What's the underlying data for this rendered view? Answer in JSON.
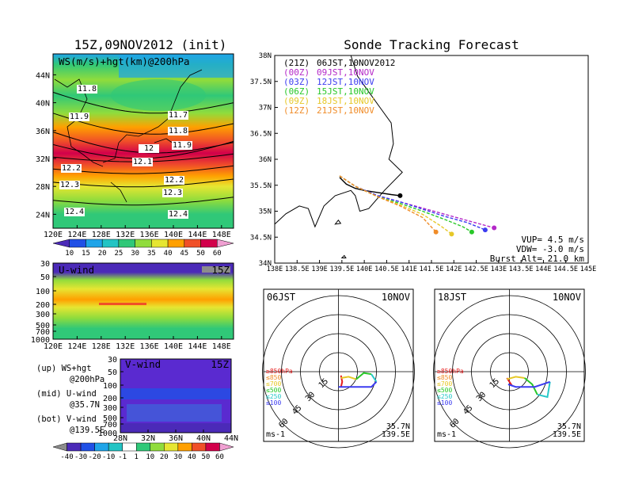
{
  "header": {
    "left_title": "15Z,09NOV2012 (init)",
    "right_title": "Sonde Tracking Forecast"
  },
  "ws_panel": {
    "label": "WS(m/s)+hgt(km)@200hPa",
    "lat_ticks": [
      "44N",
      "40N",
      "36N",
      "32N",
      "28N",
      "24N"
    ],
    "lon_ticks": [
      "120E",
      "124E",
      "128E",
      "132E",
      "136E",
      "140E",
      "144E",
      "148E"
    ],
    "contour_labels": [
      "11.8",
      "11.9",
      "11.7",
      "11.8",
      "11.9",
      "12",
      "12.1",
      "12.2",
      "12.2",
      "12.3",
      "12.3",
      "12.4",
      "12.4"
    ],
    "colorbar": {
      "ticks": [
        "10",
        "15",
        "20",
        "25",
        "30",
        "35",
        "40",
        "45",
        "50",
        "60"
      ],
      "colors": [
        "#4b2ab8",
        "#2050e6",
        "#1fa4e8",
        "#22c4c4",
        "#30c878",
        "#90dc3c",
        "#e6e632",
        "#ffa000",
        "#f05028",
        "#d2004b",
        "#f0a0d2"
      ]
    }
  },
  "u_panel": {
    "label": "U-wind",
    "time": "15Z",
    "levels": [
      "30",
      "50",
      "100",
      "200",
      "300",
      "500",
      "700",
      "1000"
    ],
    "lon_ticks": [
      "120E",
      "124E",
      "128E",
      "132E",
      "136E",
      "140E",
      "144E",
      "148E"
    ]
  },
  "v_panel": {
    "label": "V-wind",
    "time": "15Z",
    "levels": [
      "30",
      "50",
      "100",
      "200",
      "300",
      "500",
      "700",
      "1000"
    ],
    "lat_ticks": [
      "28N",
      "32N",
      "36N",
      "40N",
      "44N"
    ],
    "colorbar": {
      "ticks": [
        "-40",
        "-30",
        "-20",
        "-10",
        "-1",
        "1",
        "10",
        "20",
        "30",
        "40",
        "50",
        "60"
      ],
      "colors": [
        "#8c8c8c",
        "#4b2ab8",
        "#2050e6",
        "#1fa4e8",
        "#22c4c4",
        "#ffffff",
        "#30c878",
        "#90dc3c",
        "#e6e632",
        "#ffa000",
        "#f05028",
        "#d2004b",
        "#f0a0d2"
      ]
    }
  },
  "notes": {
    "up1": "(up) WS+hgt",
    "up2": "@200hPa",
    "mid1": "(mid) U-wind",
    "mid2": "@35.7N",
    "bot1": "(bot) V-wind",
    "bot2": "@139.5E"
  },
  "map_panel": {
    "lat_ticks": [
      "38N",
      "37.5N",
      "37N",
      "36.5N",
      "36N",
      "35.5N",
      "35N",
      "34.5N",
      "34N"
    ],
    "lon_ticks": [
      "138E",
      "138.5E",
      "139E",
      "139.5E",
      "140E",
      "140.5E",
      "141E",
      "141.5E",
      "142E",
      "142.5E",
      "143E",
      "143.5E",
      "144E",
      "144.5E",
      "145E"
    ],
    "legend": [
      {
        "code": "(21Z)",
        "time": "06JST,10NOV2012",
        "color": "#000000"
      },
      {
        "code": "(00Z)",
        "time": "09JST,10NOV",
        "color": "#b428c8"
      },
      {
        "code": "(03Z)",
        "time": "12JST,10NOV",
        "color": "#3c3cf0"
      },
      {
        "code": "(06Z)",
        "time": "15JST,10NOV",
        "color": "#28c828"
      },
      {
        "code": "(09Z)",
        "time": "18JST,10NOV",
        "color": "#e6c828"
      },
      {
        "code": "(12Z)",
        "time": "21JST,10NOV",
        "color": "#f08c28"
      }
    ],
    "params": {
      "vup": "VUP= 4.5 m/s",
      "vdw": "VDW= -3.0 m/s",
      "burst": "Burst Alt= 21.0 km"
    }
  },
  "hodo_left": {
    "title": "06JST",
    "date": "10NOV",
    "ring_labels": [
      "15",
      "30",
      "45",
      "60"
    ],
    "legend": [
      {
        "label": "≥850hPa",
        "color": "#e61e1e"
      },
      {
        "label": "≤850",
        "color": "#f08c28"
      },
      {
        "label": "≤700",
        "color": "#e6c828"
      },
      {
        "label": "≤500",
        "color": "#28c828"
      },
      {
        "label": "≤250",
        "color": "#28c8c8"
      },
      {
        "label": "≤100",
        "color": "#3c3cf0"
      }
    ],
    "unit": "ms-1",
    "lat": "35.7N",
    "lon": "139.5E"
  },
  "hodo_right": {
    "title": "18JST",
    "date": "10NOV",
    "ring_labels": [
      "15",
      "30",
      "45",
      "60"
    ],
    "legend": [
      {
        "label": "≥850hPa",
        "color": "#e61e1e"
      },
      {
        "label": "≤850",
        "color": "#f08c28"
      },
      {
        "label": "≤700",
        "color": "#e6c828"
      },
      {
        "label": "≤500",
        "color": "#28c828"
      },
      {
        "label": "≤250",
        "color": "#28c8c8"
      },
      {
        "label": "≤100",
        "color": "#3c3cf0"
      }
    ],
    "unit": "ms-1",
    "lat": "35.7N",
    "lon": "139.5E"
  },
  "chart_data": [
    {
      "type": "heatmap",
      "title": "15Z,09NOV2012 (init)",
      "label": "WS(m/s)+hgt(km)@200hPa",
      "xlim": [
        120,
        150
      ],
      "ylim": [
        22,
        47
      ],
      "x_ticks": [
        120,
        124,
        128,
        132,
        136,
        140,
        144,
        148
      ],
      "y_ticks": [
        24,
        28,
        32,
        36,
        40,
        44
      ],
      "jet_core_lat": 31.5,
      "height_contours_km": [
        11.7,
        11.8,
        11.9,
        12.0,
        12.1,
        12.2,
        12.3,
        12.4
      ],
      "colorbar_levels": [
        10,
        15,
        20,
        25,
        30,
        35,
        40,
        45,
        50,
        60
      ]
    },
    {
      "type": "heatmap",
      "label": "U-wind",
      "time": "15Z",
      "xlim": [
        120,
        150
      ],
      "y_levels_hPa": [
        30,
        50,
        100,
        200,
        300,
        500,
        700,
        1000
      ],
      "max_level_hPa": 200
    },
    {
      "type": "heatmap",
      "label": "V-wind",
      "time": "15Z",
      "xlim": [
        28,
        44
      ],
      "y_levels_hPa": [
        30,
        50,
        100,
        200,
        300,
        500,
        700,
        1000
      ],
      "colorbar_levels": [
        -40,
        -30,
        -20,
        -10,
        -1,
        1,
        10,
        20,
        30,
        40,
        50,
        60
      ]
    },
    {
      "type": "line",
      "title": "Sonde Tracking Forecast",
      "xlim": [
        138,
        145
      ],
      "ylim": [
        34,
        38
      ],
      "launch": {
        "lon": 139.5,
        "lat": 35.7
      },
      "series": [
        {
          "name": "(21Z) 06JST,10NOV2012",
          "x": [
            139.45,
            139.6,
            139.8,
            140.0,
            140.3,
            140.6,
            140.8
          ],
          "y": [
            35.65,
            35.52,
            35.44,
            35.4,
            35.36,
            35.32,
            35.3
          ]
        },
        {
          "name": "(00Z) 09JST,10NOV",
          "x": [
            139.45,
            139.8,
            140.3,
            140.8,
            141.3,
            141.8,
            142.3,
            142.9
          ],
          "y": [
            35.68,
            35.48,
            35.3,
            35.18,
            35.06,
            34.94,
            34.82,
            34.68
          ]
        },
        {
          "name": "(03Z) 12JST,10NOV",
          "x": [
            139.45,
            139.8,
            140.3,
            140.8,
            141.3,
            141.8,
            142.3,
            142.7
          ],
          "y": [
            35.68,
            35.48,
            35.3,
            35.18,
            35.04,
            34.9,
            34.78,
            34.64
          ]
        },
        {
          "name": "(06Z) 15JST,10NOV",
          "x": [
            139.45,
            139.8,
            140.3,
            140.8,
            141.3,
            141.8,
            142.2,
            142.4
          ],
          "y": [
            35.68,
            35.48,
            35.28,
            35.15,
            35.0,
            34.84,
            34.7,
            34.6
          ]
        },
        {
          "name": "(09Z) 18JST,10NOV",
          "x": [
            139.45,
            139.8,
            140.3,
            140.8,
            141.3,
            141.7,
            141.95
          ],
          "y": [
            35.68,
            35.48,
            35.28,
            35.12,
            34.94,
            34.72,
            34.56
          ]
        },
        {
          "name": "(12Z) 21JST,10NOV",
          "x": [
            139.45,
            139.8,
            140.3,
            140.8,
            141.3,
            141.6
          ],
          "y": [
            35.68,
            35.48,
            35.28,
            35.1,
            34.88,
            34.6
          ]
        }
      ]
    },
    {
      "type": "line",
      "title": "06JST 10NOV hodograph",
      "ring_speeds_ms": [
        15,
        30,
        45,
        60
      ],
      "series": [
        {
          "name": "≥850hPa",
          "u": [
            2,
            3,
            2
          ],
          "v": [
            -3,
            -8,
            -12
          ]
        },
        {
          "name": "≤700",
          "u": [
            2,
            8,
            14
          ],
          "v": [
            -5,
            -4,
            -6
          ]
        },
        {
          "name": "≤500",
          "u": [
            14,
            20,
            26
          ],
          "v": [
            -6,
            -1,
            -2
          ]
        },
        {
          "name": "≤250",
          "u": [
            26,
            30
          ],
          "v": [
            -2,
            -8
          ]
        },
        {
          "name": "≤100",
          "u": [
            30,
            26,
            15,
            0
          ],
          "v": [
            -8,
            -12,
            -12,
            -12
          ]
        }
      ]
    },
    {
      "type": "line",
      "title": "18JST 10NOV hodograph",
      "ring_speeds_ms": [
        15,
        30,
        45,
        60
      ],
      "series": [
        {
          "name": "≥850hPa",
          "u": [
            -2,
            0,
            2
          ],
          "v": [
            -5,
            -8,
            -11
          ]
        },
        {
          "name": "≤700",
          "u": [
            -2,
            5,
            12
          ],
          "v": [
            -6,
            -4,
            -5
          ]
        },
        {
          "name": "≤500",
          "u": [
            12,
            18,
            22
          ],
          "v": [
            -5,
            -10,
            -18
          ]
        },
        {
          "name": "≤250",
          "u": [
            22,
            30,
            32
          ],
          "v": [
            -18,
            -20,
            -8
          ]
        },
        {
          "name": "≤100",
          "u": [
            32,
            20,
            5,
            -1
          ],
          "v": [
            -8,
            -12,
            -12,
            -10
          ]
        }
      ]
    }
  ]
}
